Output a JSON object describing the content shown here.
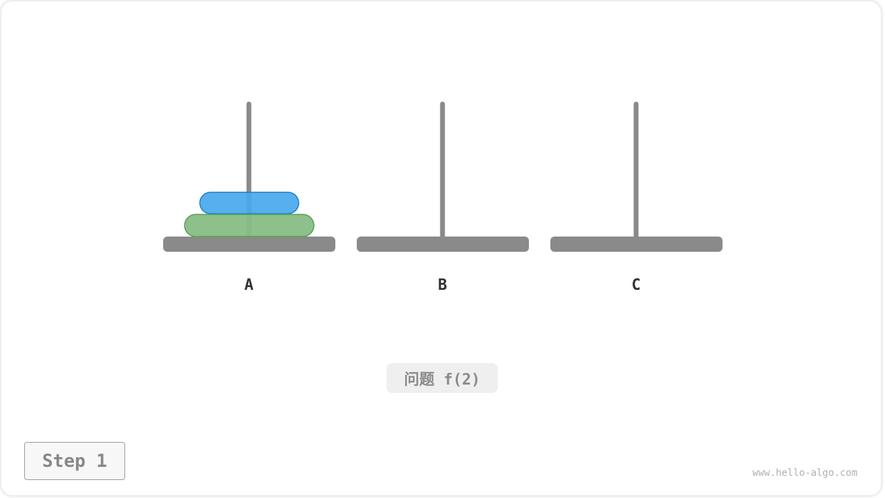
{
  "pegs": [
    {
      "label": "A"
    },
    {
      "label": "B"
    },
    {
      "label": "C"
    }
  ],
  "disks": [
    {
      "peg": "A",
      "size": "small",
      "fill": "#4aa8ec",
      "stroke": "#1b7fcb"
    },
    {
      "peg": "A",
      "size": "large",
      "fill": "#87bd85",
      "stroke": "#55a052"
    }
  ],
  "colors": {
    "peg": "#8a8a8a"
  },
  "problem_label": "问题 f(2)",
  "step_label": "Step 1",
  "watermark": "www.hello-algo.com"
}
